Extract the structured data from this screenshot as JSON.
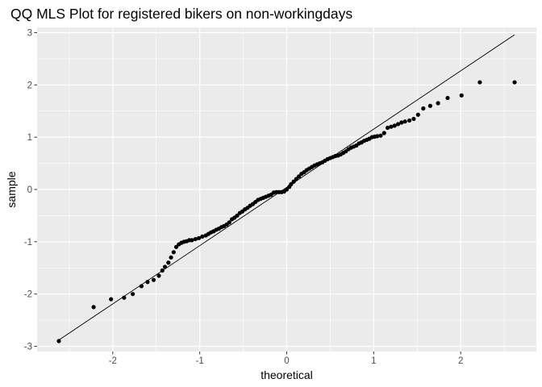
{
  "chart_data": {
    "type": "scatter",
    "title": "QQ MLS Plot for registered bikers on non-workingdays",
    "xlabel": "theoretical",
    "ylabel": "sample",
    "xlim": [
      -2.87,
      2.87
    ],
    "ylim": [
      -3.1,
      3.1
    ],
    "xticks": [
      -2,
      -1,
      0,
      1,
      2
    ],
    "yticks": [
      -3,
      -2,
      -1,
      0,
      1,
      2,
      3
    ],
    "xtick_labels": [
      "-2",
      "-1",
      "0",
      "1",
      "2"
    ],
    "ytick_labels": [
      "-3",
      "-2",
      "-1",
      "0",
      "1",
      "2",
      "3"
    ],
    "grid": true,
    "panel_background": "#ebebeb",
    "grid_color": "#ffffff",
    "point_color": "#000000",
    "reference_line": {
      "x": [
        -2.62,
        2.62
      ],
      "y": [
        -2.88,
        2.96
      ],
      "color": "#000000"
    },
    "series": [
      {
        "x": [
          -2.62,
          -2.22,
          -2.02,
          -1.87,
          -1.77,
          -1.67,
          -1.6,
          -1.53,
          -1.47,
          -1.43,
          -1.4,
          -1.36,
          -1.33,
          -1.3,
          -1.27,
          -1.24,
          -1.21,
          -1.18,
          -1.15,
          -1.12,
          -1.09,
          -1.05,
          -1.01,
          -0.97,
          -0.93,
          -0.9,
          -0.87,
          -0.84,
          -0.81,
          -0.78,
          -0.75,
          -0.72,
          -0.69,
          -0.66,
          -0.63,
          -0.6,
          -0.57,
          -0.54,
          -0.51,
          -0.48,
          -0.45,
          -0.42,
          -0.39,
          -0.36,
          -0.33,
          -0.3,
          -0.27,
          -0.24,
          -0.21,
          -0.18,
          -0.15,
          -0.12,
          -0.09,
          -0.06,
          -0.03,
          0.0,
          0.03,
          0.05,
          0.08,
          0.11,
          0.14,
          0.17,
          0.2,
          0.23,
          0.26,
          0.29,
          0.32,
          0.35,
          0.38,
          0.41,
          0.44,
          0.47,
          0.5,
          0.53,
          0.56,
          0.59,
          0.62,
          0.65,
          0.68,
          0.71,
          0.74,
          0.77,
          0.8,
          0.83,
          0.86,
          0.89,
          0.92,
          0.95,
          0.98,
          1.01,
          1.04,
          1.08,
          1.12,
          1.16,
          1.2,
          1.24,
          1.28,
          1.32,
          1.36,
          1.41,
          1.46,
          1.51,
          1.57,
          1.65,
          1.74,
          1.85,
          2.01,
          2.22,
          2.62
        ],
        "y": [
          -2.9,
          -2.25,
          -2.1,
          -2.07,
          -2.0,
          -1.85,
          -1.77,
          -1.73,
          -1.65,
          -1.55,
          -1.48,
          -1.4,
          -1.3,
          -1.2,
          -1.1,
          -1.05,
          -1.02,
          -1.0,
          -0.99,
          -0.97,
          -0.97,
          -0.95,
          -0.93,
          -0.9,
          -0.88,
          -0.85,
          -0.82,
          -0.8,
          -0.77,
          -0.75,
          -0.72,
          -0.7,
          -0.67,
          -0.63,
          -0.57,
          -0.54,
          -0.5,
          -0.45,
          -0.42,
          -0.38,
          -0.35,
          -0.31,
          -0.28,
          -0.24,
          -0.2,
          -0.18,
          -0.16,
          -0.14,
          -0.12,
          -0.1,
          -0.06,
          -0.05,
          -0.05,
          -0.05,
          -0.04,
          0.0,
          0.05,
          0.1,
          0.15,
          0.2,
          0.25,
          0.3,
          0.33,
          0.37,
          0.4,
          0.43,
          0.46,
          0.48,
          0.5,
          0.52,
          0.55,
          0.58,
          0.6,
          0.62,
          0.64,
          0.65,
          0.67,
          0.7,
          0.73,
          0.77,
          0.8,
          0.82,
          0.84,
          0.88,
          0.9,
          0.93,
          0.95,
          0.97,
          1.0,
          1.01,
          1.02,
          1.03,
          1.08,
          1.18,
          1.2,
          1.22,
          1.25,
          1.28,
          1.3,
          1.32,
          1.35,
          1.43,
          1.55,
          1.6,
          1.65,
          1.75,
          1.8,
          2.05,
          2.05
        ]
      }
    ]
  }
}
